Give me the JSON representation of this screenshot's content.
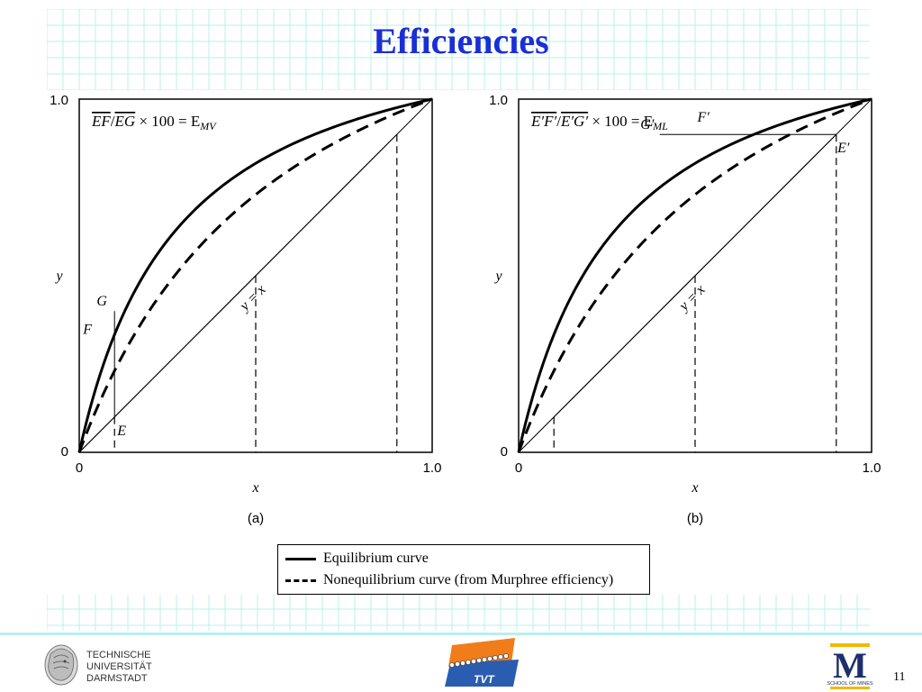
{
  "slide": {
    "title": "Efficiencies",
    "page_number": "11"
  },
  "chart_data": [
    {
      "type": "line",
      "panel_caption": "(a)",
      "xlabel": "x",
      "ylabel": "y",
      "xlim": [
        0,
        1
      ],
      "ylim": [
        0,
        1
      ],
      "tick_labels": {
        "x": [
          "0",
          "1.0"
        ],
        "y": [
          "0",
          "1.0"
        ]
      },
      "formula": "EF/EG × 100 = E_MV",
      "formula_parts": {
        "num": "EF",
        "den": "EG",
        "rhs": "× 100 = E",
        "sub": "MV"
      },
      "diagonal_label": "y = x",
      "point_labels": [
        "G",
        "F",
        "E"
      ],
      "series": [
        {
          "name": "Equilibrium curve",
          "style": "solid",
          "relative_volatility": 4.5
        },
        {
          "name": "Nonequilibrium curve (from Murphree efficiency)",
          "style": "dashed",
          "relative_volatility": 2.7
        }
      ],
      "operating_line": {
        "x": [
          0,
          0.1,
          0.9
        ],
        "y": [
          0,
          0.1,
          0.9
        ]
      },
      "points": {
        "E": [
          0.1,
          0.1
        ],
        "F": [
          0.1,
          0.3
        ],
        "G": [
          0.1,
          0.4
        ]
      },
      "dashed_drops_x": [
        0.1,
        0.5,
        0.9
      ]
    },
    {
      "type": "line",
      "panel_caption": "(b)",
      "xlabel": "x",
      "ylabel": "y",
      "xlim": [
        0,
        1
      ],
      "ylim": [
        0,
        1
      ],
      "tick_labels": {
        "x": [
          "0",
          "1.0"
        ],
        "y": [
          "0",
          "1.0"
        ]
      },
      "formula": "E′F′/E′G′ × 100 = E_ML",
      "formula_parts": {
        "num": "E′F′",
        "den": "E′G′",
        "rhs": "× 100 = E",
        "sub": "ML"
      },
      "diagonal_label": "y = x",
      "point_labels": [
        "G′",
        "F′",
        "E′"
      ],
      "series": [
        {
          "name": "Equilibrium curve",
          "style": "solid",
          "relative_volatility": 4.5
        },
        {
          "name": "Nonequilibrium curve (from Murphree efficiency)",
          "style": "dashed",
          "relative_volatility": 2.7
        }
      ],
      "operating_line": {
        "x": [
          0.1,
          0.5,
          0.9
        ],
        "y": [
          0.1,
          0.5,
          0.9
        ]
      },
      "points": {
        "E′": [
          0.9,
          0.9
        ],
        "F′": [
          0.6,
          0.9
        ],
        "G′": [
          0.4,
          0.9
        ]
      },
      "dashed_drops_x": [
        0.1,
        0.5,
        0.9
      ]
    }
  ],
  "legend": {
    "items": [
      {
        "label": "Equilibrium curve",
        "style": "solid"
      },
      {
        "label": "Nonequilibrium curve (from Murphree efficiency)",
        "style": "dashed"
      }
    ]
  },
  "footer": {
    "tud_logo": {
      "icon": "athena-head-icon",
      "lines": [
        "TECHNISCHE",
        "UNIVERSITÄT",
        "DARMSTADT"
      ]
    },
    "tvt_logo": {
      "text": "TVT"
    },
    "um_logo": {
      "letter": "M",
      "caption": "SCHOOL OF MINES"
    }
  },
  "colors": {
    "title": "#1a2fd6",
    "grid": "#b8f0ea",
    "tvt_orange": "#f07d1a",
    "tvt_blue": "#2a5db0",
    "um_blue": "#1f2f6b",
    "um_gold": "#f2b800"
  }
}
